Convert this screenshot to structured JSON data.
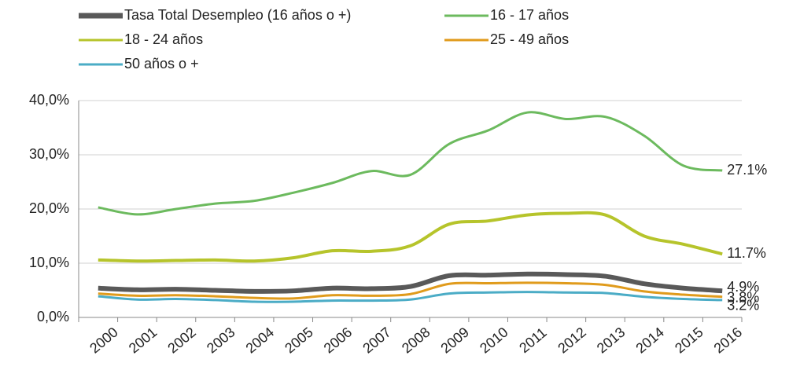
{
  "chart_data": {
    "type": "line",
    "categories": [
      "2000",
      "2001",
      "2002",
      "2003",
      "2004",
      "2005",
      "2006",
      "2007",
      "2008",
      "2009",
      "2010",
      "2011",
      "2012",
      "2013",
      "2014",
      "2015",
      "2016"
    ],
    "series": [
      {
        "name": "Tasa Total Desempleo (16 años o +)",
        "color": "#595959",
        "values": [
          5.4,
          5.1,
          5.2,
          5.0,
          4.8,
          4.9,
          5.4,
          5.3,
          5.7,
          7.7,
          7.8,
          8.0,
          7.9,
          7.6,
          6.2,
          5.4,
          4.9
        ],
        "value_labels": [
          null,
          null,
          null,
          null,
          null,
          null,
          null,
          null,
          null,
          null,
          null,
          null,
          null,
          null,
          null,
          null,
          "4.9%"
        ]
      },
      {
        "name": "16 - 17 años",
        "color": "#6cba5e",
        "values": [
          20.3,
          19.0,
          20.0,
          21.0,
          21.5,
          23.0,
          24.8,
          27.0,
          26.3,
          32.0,
          34.5,
          37.8,
          36.6,
          37.0,
          33.5,
          28.0,
          27.1
        ],
        "value_labels": [
          null,
          null,
          null,
          null,
          null,
          null,
          null,
          null,
          null,
          null,
          null,
          null,
          null,
          null,
          null,
          null,
          "27.1%"
        ]
      },
      {
        "name": "18 - 24 años",
        "color": "#b6c42b",
        "values": [
          10.6,
          10.4,
          10.5,
          10.6,
          10.4,
          11.0,
          12.3,
          12.2,
          13.2,
          17.2,
          17.8,
          18.9,
          19.2,
          18.9,
          15.0,
          13.5,
          11.7
        ],
        "value_labels": [
          null,
          null,
          null,
          null,
          null,
          null,
          null,
          null,
          null,
          null,
          null,
          null,
          null,
          null,
          null,
          null,
          "11.7%"
        ]
      },
      {
        "name": "25 - 49 años",
        "color": "#e09b1c",
        "values": [
          4.4,
          4.0,
          4.1,
          3.9,
          3.6,
          3.5,
          4.1,
          4.0,
          4.3,
          6.2,
          6.3,
          6.4,
          6.3,
          6.0,
          4.8,
          4.2,
          3.8
        ],
        "value_labels": [
          null,
          null,
          null,
          null,
          null,
          null,
          null,
          null,
          null,
          null,
          null,
          null,
          null,
          null,
          null,
          null,
          "3.8%"
        ]
      },
      {
        "name": "50 años o +",
        "color": "#4bacc6",
        "values": [
          3.9,
          3.3,
          3.4,
          3.2,
          2.9,
          2.9,
          3.1,
          3.1,
          3.3,
          4.4,
          4.6,
          4.7,
          4.6,
          4.5,
          3.8,
          3.4,
          3.2
        ],
        "value_labels": [
          null,
          null,
          null,
          null,
          null,
          null,
          null,
          null,
          null,
          null,
          null,
          null,
          null,
          null,
          null,
          null,
          "3.2%"
        ]
      }
    ],
    "ylim": [
      0,
      40
    ],
    "yticks": [
      {
        "value": 0,
        "label": "0,0%"
      },
      {
        "value": 10,
        "label": "10,0%"
      },
      {
        "value": 20,
        "label": "20,0%"
      },
      {
        "value": 30,
        "label": "30,0%"
      },
      {
        "value": 40,
        "label": "40,0%"
      }
    ],
    "grid": true
  }
}
